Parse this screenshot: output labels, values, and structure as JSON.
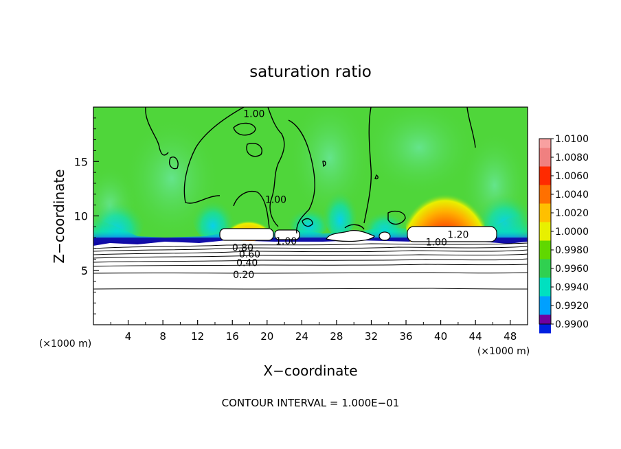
{
  "chart_data": {
    "type": "heatmap",
    "title": "saturation ratio",
    "xlabel": "X−coordinate",
    "ylabel": "Z−coordinate",
    "x_unit_left": "(×1000 m)",
    "x_unit_right": "(×1000 m)",
    "xlim": [
      0,
      50
    ],
    "ylim": [
      0,
      20
    ],
    "xticks": [
      4,
      8,
      12,
      16,
      20,
      24,
      28,
      32,
      36,
      40,
      44,
      48
    ],
    "yticks": [
      5,
      10,
      15
    ],
    "contour_interval_text": "CONTOUR INTERVAL = 1.000E−01",
    "contour_labels": [
      {
        "text": "1.00",
        "x": 18.5,
        "y": 19.4
      },
      {
        "text": "1.00",
        "x": 21.0,
        "y": 11.5
      },
      {
        "text": "1.00",
        "x": 22.2,
        "y": 7.7
      },
      {
        "text": "1.20",
        "x": 42.0,
        "y": 8.3
      },
      {
        "text": "1.00",
        "x": 39.5,
        "y": 7.6
      },
      {
        "text": "0.80",
        "x": 17.2,
        "y": 7.1
      },
      {
        "text": "0.60",
        "x": 18.0,
        "y": 6.5
      },
      {
        "text": "0.40",
        "x": 17.7,
        "y": 5.7
      },
      {
        "text": "0.20",
        "x": 17.3,
        "y": 4.6
      }
    ],
    "colorbar": {
      "ticks": [
        "1.0100",
        "1.0080",
        "1.0060",
        "1.0040",
        "1.0020",
        "1.0000",
        "0.9980",
        "0.9960",
        "0.9940",
        "0.9920",
        "0.9900"
      ],
      "colors": [
        "#f08080",
        "#ff2a00",
        "#ff7000",
        "#ffc000",
        "#e8f000",
        "#60d800",
        "#30d050",
        "#00e0c0",
        "#00a0ff",
        "#0020e0",
        "#3000a0"
      ],
      "top_color": "#f8a0a0",
      "bottom_color": "#7000a0"
    },
    "field_colors": {
      "background": "#4fd63a",
      "light_band": "#5ddf7a",
      "cyan": "#00e0c8",
      "blue": "#1060ff",
      "dark_blue": "#1000a0",
      "red": "#ff2200",
      "orange": "#ff9000",
      "yellow": "#f0f000",
      "below_base": "#ffffff"
    }
  }
}
